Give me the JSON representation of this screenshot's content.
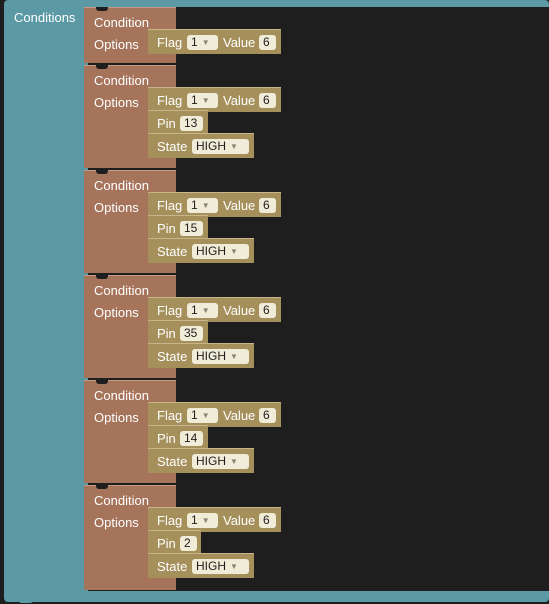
{
  "outer_label": "Conditions",
  "condition_title": "Condition",
  "options_label": "Options",
  "field_labels": {
    "flag": "Flag",
    "value": "Value",
    "pin": "Pin",
    "state": "State"
  },
  "dropdown_icon": "chevron-down-icon",
  "colors": {
    "conditions_block": "#5b99a5",
    "condition_block": "#a5745b",
    "field_block": "#a58f5b",
    "workspace": "#1e1e1e"
  },
  "conditions": [
    {
      "flag": "1",
      "value": "6"
    },
    {
      "flag": "1",
      "value": "6",
      "pin": "13",
      "state": "HIGH"
    },
    {
      "flag": "1",
      "value": "6",
      "pin": "15",
      "state": "HIGH"
    },
    {
      "flag": "1",
      "value": "6",
      "pin": "35",
      "state": "HIGH"
    },
    {
      "flag": "1",
      "value": "6",
      "pin": "14",
      "state": "HIGH"
    },
    {
      "flag": "1",
      "value": "6",
      "pin": "2",
      "state": "HIGH"
    }
  ]
}
